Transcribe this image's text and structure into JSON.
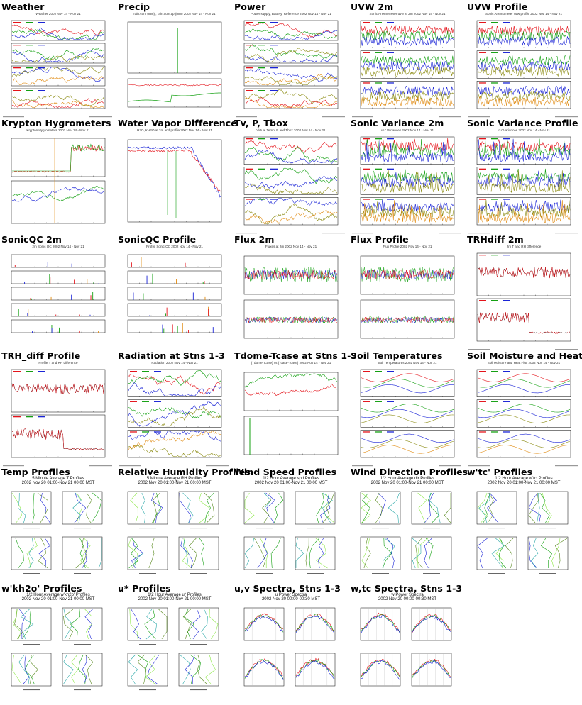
{
  "page": {
    "layout": {
      "columns": 5
    },
    "colors": {
      "red": "#e4131a",
      "green": "#14a012",
      "blue": "#1a24d6",
      "lightgreen": "#8ee84a",
      "olive": "#8a8a10",
      "orange": "#e08a10",
      "gray": "#777777"
    },
    "cells": [
      {
        "title": "Weather",
        "kind": "ts",
        "sub": "Weather 2002 Nov 14 - Nov 21",
        "panels": 4
      },
      {
        "title": "Precip",
        "kind": "precip",
        "sub": "rain.cum (mm) , rain.cum.tip (mm) 2002 Nov 14 - Nov 21",
        "panels": 2
      },
      {
        "title": "Power",
        "kind": "ts",
        "sub": "Power supply, Battery, Reference 2002 Nov 14 - Nov 21",
        "panels": 4
      },
      {
        "title": "UVW 2m",
        "kind": "noise",
        "sub": "Sonic Anemometer uvw at 2m 2002 Nov 14 - Nov 21",
        "panels": 3
      },
      {
        "title": "UVW Profile",
        "kind": "noise",
        "sub": "Sonic Anemometer uvw profile 2002 Nov 14 - Nov 21",
        "panels": 3
      },
      {
        "title": "Krypton Hygrometers",
        "kind": "krypton",
        "sub": "Krypton Hygrometers 2002 Nov 14 - Nov 21",
        "panels": 2
      },
      {
        "title": "Water Vapor Difference",
        "kind": "wvd",
        "sub": "H2O, KH2O at 2m and profile 2002 Nov 14 - Nov 21",
        "panels": 1
      },
      {
        "title": "Tv, P, Tbox",
        "kind": "ts",
        "sub": "Virtual Temp, P and Tbox 2002 Nov 14 - Nov 21",
        "panels": 3
      },
      {
        "title": "Sonic Variance 2m",
        "kind": "spiky",
        "sub": "u'u' Variances 2002 Nov 14 - Nov 21",
        "panels": 3
      },
      {
        "title": "Sonic Variance Profile",
        "kind": "spiky",
        "sub": "u'u' Variances 2002 Nov 14 - Nov 21",
        "panels": 3
      },
      {
        "title": "SonicQC 2m",
        "kind": "qc",
        "sub": "2m Sonic QC 2002 Nov 14 - Nov 21",
        "panels": 5
      },
      {
        "title": "SonicQC Profile",
        "kind": "qc",
        "sub": "Profile Sonic QC 2002 Nov 14 - Nov 21",
        "panels": 5
      },
      {
        "title": "Flux 2m",
        "kind": "flux",
        "sub": "Fluxes at 2m 2002 Nov 14 - Nov 21",
        "panels": 2
      },
      {
        "title": "Flux Profile",
        "kind": "flux",
        "sub": "Flux Profile 2002 Nov 14 - Nov 21",
        "panels": 2
      },
      {
        "title": "TRHdiff 2m",
        "kind": "trh",
        "sub": "2m T and RH difference",
        "panels": 2
      },
      {
        "title": "TRH_diff Profile",
        "kind": "trh",
        "sub": "Profile T and RH difference",
        "panels": 2
      },
      {
        "title": "Radiation at Stns 1-3",
        "kind": "ts",
        "sub": "Radiation 2002 Nov 14 - Nov 21",
        "panels": 3
      },
      {
        "title": "Tdome-Tcase at Stns 1-3",
        "kind": "tdome",
        "sub": "(Tdome-Tcase) vs (Tcase-Tcase) 2002 Nov 14 - Nov 21",
        "panels": 2
      },
      {
        "title": "Soil Temperatures",
        "kind": "soil",
        "sub": "Soil Temperatures 2002 Nov 14 - Nov 21",
        "panels": 3
      },
      {
        "title": "Soil Moisture and Heat Flux",
        "kind": "soil",
        "sub": "Soil Moisture and Heat Flux 2002 Nov 14 - Nov 21",
        "panels": 3
      },
      {
        "title": "Temp Profiles",
        "kind": "profile",
        "sub": "5 Minute Average T Profiles",
        "sub2": "2002 Nov 20 01:00-Nov 21 00:00 MST"
      },
      {
        "title": "Relative Humidity Profiles",
        "kind": "profile",
        "sub": "5 Minute Average RH Profiles",
        "sub2": "2002 Nov 20 01:00-Nov 21 00:00 MST"
      },
      {
        "title": "Wind Speed Profiles",
        "kind": "profile",
        "sub": "1/2 Hour Average spd Profiles",
        "sub2": "2002 Nov 20 01:00-Nov 21 00:00 MST"
      },
      {
        "title": "Wind Direction Profiles",
        "kind": "profile",
        "sub": "1/2 Hour Average dir Profiles",
        "sub2": "2002 Nov 20 01:00-Nov 21 00:00 MST"
      },
      {
        "title": "w'tc' Profiles",
        "kind": "profile",
        "sub": "1/2 Hour Average w'tc' Profiles",
        "sub2": "2002 Nov 20 01:00-Nov 21 00:00 MST"
      },
      {
        "title": "w'kh2o' Profiles",
        "kind": "profile",
        "sub": "1/2 Hour Average w'kh2o' Profiles",
        "sub2": "2002 Nov 20 01:00-Nov 21 00:00 MST"
      },
      {
        "title": "u* Profiles",
        "kind": "profile",
        "sub": "1/2 Hour Average u* Profiles",
        "sub2": "2002 Nov 20 01:00-Nov 21 00:00 MST"
      },
      {
        "title": "u,v Spectra, Stns 1-3",
        "kind": "spectra",
        "sub": "u Power Spectra",
        "sub2": "2002 Nov 20 00:00-00:30 MST"
      },
      {
        "title": "w,tc Spectra, Stns 1-3",
        "kind": "spectra",
        "sub": "w Power Spectra",
        "sub2": "2002 Nov 20 00:00-00:30 MST"
      }
    ]
  }
}
